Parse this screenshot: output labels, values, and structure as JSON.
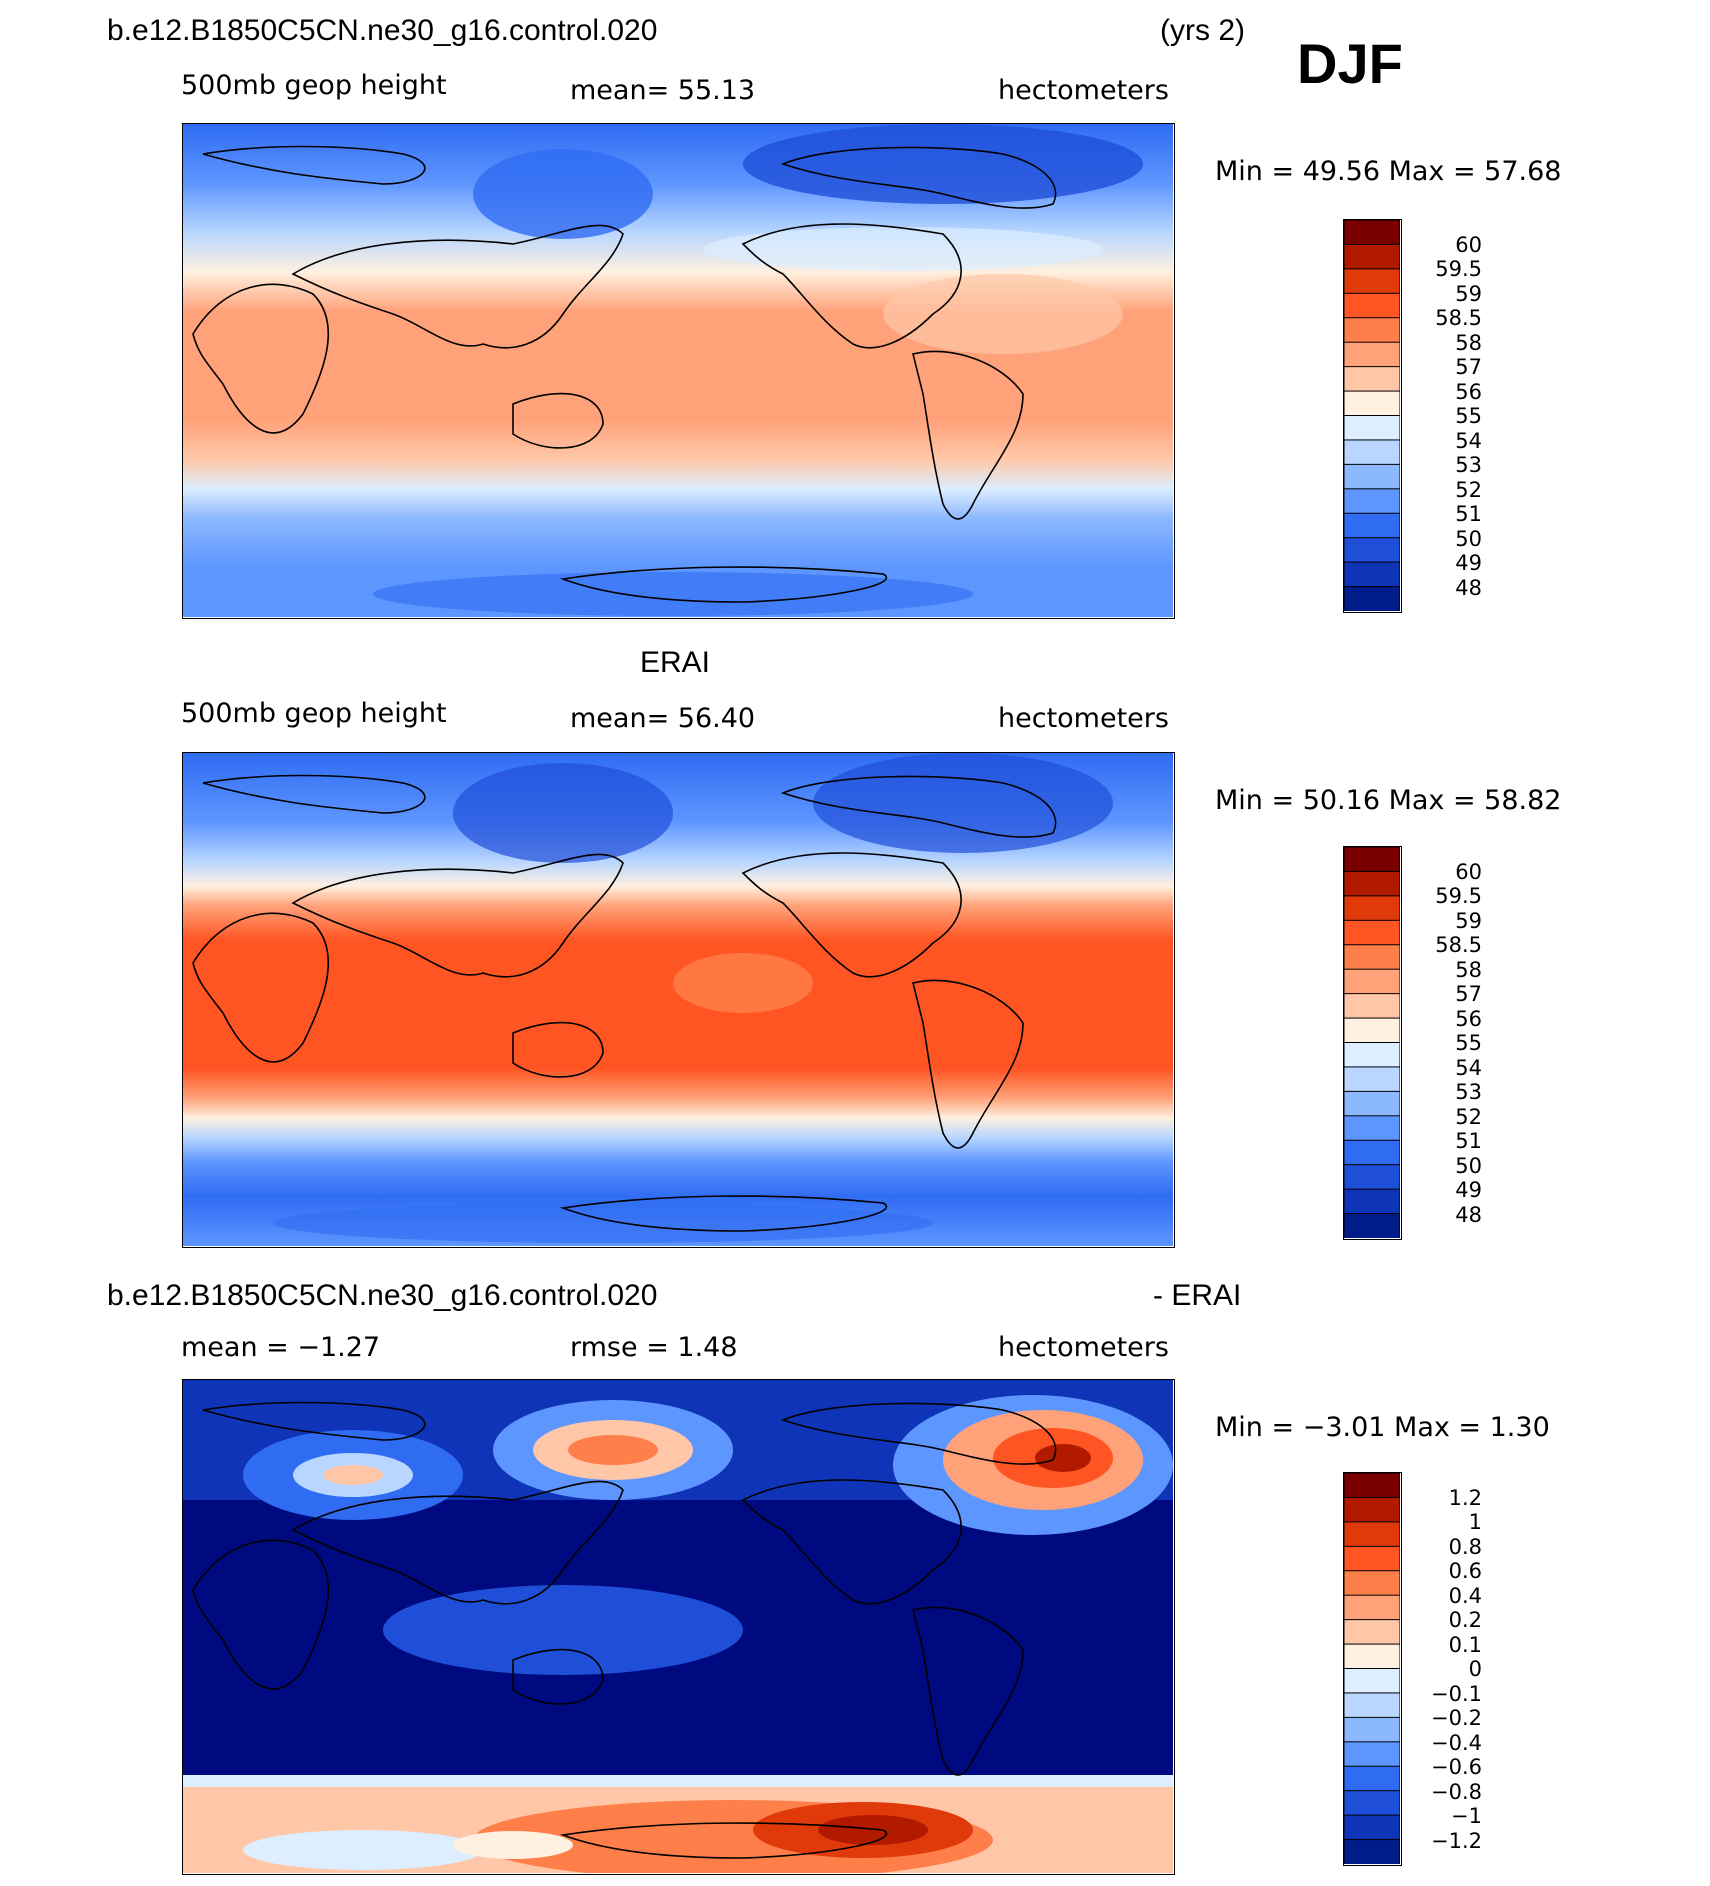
{
  "header": {
    "case_name": "b.e12.B1850C5CN.ne30_g16.control.020",
    "years": "(yrs 2)",
    "season": "DJF"
  },
  "panels": [
    {
      "title_left": "b.e12.B1850C5CN.ne30_g16.control.020",
      "field": "500mb geop height",
      "stat": "mean=   55.13",
      "units": "hectometers",
      "minmax": "Min =   49.56  Max =   57.68",
      "colorbar_labels": [
        "60",
        "59.5",
        "59",
        "58.5",
        "58",
        "57",
        "56",
        "55",
        "54",
        "53",
        "52",
        "51",
        "50",
        "49",
        "48"
      ]
    },
    {
      "title_left": "ERAI",
      "field": "500mb geop height",
      "stat": "mean=   56.40",
      "units": "hectometers",
      "minmax": "Min =   50.16  Max =   58.82",
      "colorbar_labels": [
        "60",
        "59.5",
        "59",
        "58.5",
        "58",
        "57",
        "56",
        "55",
        "54",
        "53",
        "52",
        "51",
        "50",
        "49",
        "48"
      ]
    },
    {
      "title_left": "b.e12.B1850C5CN.ne30_g16.control.020",
      "title_right": "- ERAI",
      "field": "mean =   −1.27",
      "stat": "rmse =     1.48",
      "units": "hectometers",
      "minmax": "Min =   −3.01  Max =     1.30",
      "colorbar_labels": [
        "1.2",
        "1",
        "0.8",
        "0.6",
        "0.4",
        "0.2",
        "0.1",
        "0",
        "−0.1",
        "−0.2",
        "−0.4",
        "−0.6",
        "−0.8",
        "−1",
        "−1.2"
      ]
    }
  ],
  "colors": {
    "ramp": [
      "#7a0000",
      "#b21a00",
      "#e03a0a",
      "#ff5522",
      "#ff7f4a",
      "#ffa27a",
      "#ffc7a8",
      "#fff0e0",
      "#dceeff",
      "#b8d6ff",
      "#8cb8ff",
      "#5e96ff",
      "#2f6cf2",
      "#1f4fd8",
      "#0f34b8",
      "#001b8a"
    ],
    "ocean_dark": "#000a80"
  }
}
